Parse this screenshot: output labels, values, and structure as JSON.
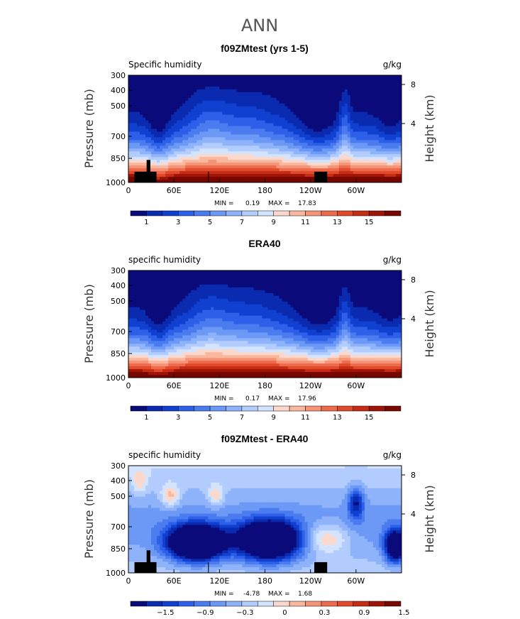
{
  "page_title": "ANN",
  "colors": {
    "seq_scale": [
      "#0a0a7a",
      "#0a2ab0",
      "#1040d0",
      "#2e5fe8",
      "#4a7cf0",
      "#6c98f6",
      "#8fb3fa",
      "#b2cdfd",
      "#d4e4fe",
      "#fbd8cb",
      "#f9b79e",
      "#f69275",
      "#ee6a4d",
      "#e04a2a",
      "#c52c14",
      "#9e1507",
      "#780700"
    ],
    "diff_scale": [
      "#0a0a7a",
      "#0a2ab0",
      "#1040d0",
      "#2e5fe8",
      "#4a7cf0",
      "#6c98f6",
      "#8fb3fa",
      "#b2cdfd",
      "#d4e4fe",
      "#fbd8cb",
      "#f9b79e",
      "#f69275",
      "#ee6a4d",
      "#e04a2a",
      "#c52c14",
      "#9e1507",
      "#780700"
    ],
    "land_mask": "#000000"
  },
  "chart_data": [
    {
      "type": "heatmap",
      "title": "f09ZMtest (yrs 1-5)",
      "left_label": "Specific humidity",
      "units": "g/kg",
      "ylabel": "Pressure (mb)",
      "y2label": "Height (km)",
      "y_ticks": [
        "300",
        "400",
        "500",
        "700",
        "850",
        "1000"
      ],
      "y2_ticks": [
        "8",
        "4"
      ],
      "x_ticks": [
        "0",
        "60E",
        "120E",
        "180",
        "120W",
        "60W"
      ],
      "x_range": [
        0,
        360
      ],
      "y_range_mb": [
        300,
        1000
      ],
      "stats": {
        "min_label": "MIN =",
        "min": "0.19",
        "max_label": "MAX =",
        "max": "17.83"
      },
      "colorbar_labels": [
        "1",
        "3",
        "5",
        "7",
        "9",
        "11",
        "13",
        "15"
      ],
      "field": "seq",
      "max_value": 17.83
    },
    {
      "type": "heatmap",
      "title": "ERA40",
      "left_label": "specific humidity",
      "units": "g/kg",
      "ylabel": "Pressure (mb)",
      "y2label": "Height (km)",
      "y_ticks": [
        "300",
        "400",
        "500",
        "700",
        "850",
        "1000"
      ],
      "y2_ticks": [
        "8",
        "4"
      ],
      "x_ticks": [
        "0",
        "60E",
        "120E",
        "180",
        "120W",
        "60W"
      ],
      "x_range": [
        0,
        360
      ],
      "y_range_mb": [
        300,
        1000
      ],
      "stats": {
        "min_label": "MIN =",
        "min": "0.17",
        "max_label": "MAX =",
        "max": "17.96"
      },
      "colorbar_labels": [
        "1",
        "3",
        "5",
        "7",
        "9",
        "11",
        "13",
        "15"
      ],
      "field": "seq",
      "max_value": 17.96
    },
    {
      "type": "heatmap",
      "title": "f09ZMtest - ERA40",
      "left_label": "specific humidity",
      "units": "g/kg",
      "ylabel": "Pressure (mb)",
      "y2label": "Height (km)",
      "y_ticks": [
        "300",
        "400",
        "500",
        "700",
        "850",
        "1000"
      ],
      "y2_ticks": [
        "8",
        "4"
      ],
      "x_ticks": [
        "0",
        "60E",
        "120E",
        "180",
        "120W",
        "60W"
      ],
      "x_range": [
        0,
        360
      ],
      "y_range_mb": [
        300,
        1000
      ],
      "stats": {
        "min_label": "MIN =",
        "min": "-4.78",
        "max_label": "MAX =",
        "max": "1.68"
      },
      "colorbar_labels": [
        "−1.5",
        "−0.9",
        "−0.3",
        "0",
        "0.3",
        "0.9",
        "1.5"
      ],
      "field": "diff",
      "max_value": 1.68
    }
  ]
}
